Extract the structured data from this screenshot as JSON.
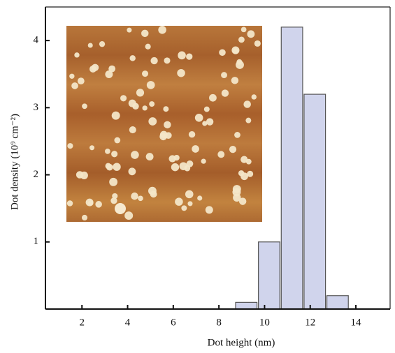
{
  "chart_data": {
    "type": "histogram",
    "xlabel": "Dot height (nm)",
    "ylabel": "Dot density (10⁹ cm⁻²)",
    "bins": [
      8.7,
      9.7,
      10.7,
      11.7,
      12.7,
      13.7
    ],
    "values": [
      0.1,
      1.0,
      4.2,
      3.2,
      0.2
    ],
    "color": "#d0d4ec",
    "xlim": [
      0.4,
      15.5
    ],
    "xticks": [
      2,
      4,
      6,
      8,
      10,
      12,
      14
    ],
    "ylim": [
      0,
      4.5
    ],
    "yticks": [
      1,
      2,
      3,
      4
    ]
  }
}
